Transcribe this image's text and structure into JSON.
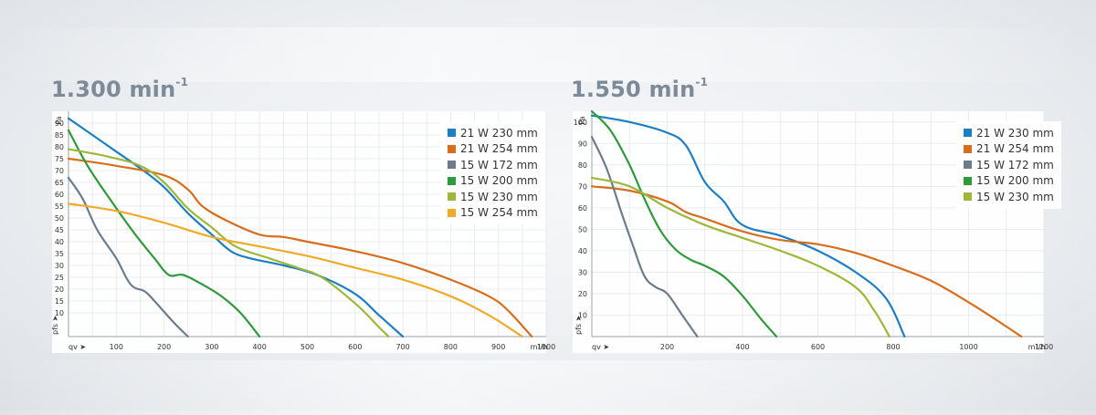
{
  "colors": {
    "21W230": "#1d7fc3",
    "21W254": "#d86e1d",
    "15W172": "#6b7d8c",
    "15W200": "#2f9a3c",
    "15W230": "#9cb83a",
    "15W254": "#eeaa28"
  },
  "chart_data": [
    {
      "type": "line",
      "title_base": "1.300 min",
      "title_sup": "-1",
      "ylabel_top": "Pa",
      "ylabel_side": "pfs ➤",
      "xlabel_left": "qv ➤",
      "xunit": "m³/h",
      "xlim": [
        0,
        1000
      ],
      "ylim": [
        0,
        95
      ],
      "xticks": [
        100,
        200,
        300,
        400,
        500,
        600,
        700,
        800,
        900,
        1000
      ],
      "yticks": [
        10,
        15,
        20,
        25,
        30,
        35,
        40,
        45,
        50,
        55,
        60,
        65,
        70,
        75,
        80,
        85,
        90
      ],
      "legend": [
        "21 W 230 mm",
        "21 W 254 mm",
        "15 W 172 mm",
        "15 W 200 mm",
        "15 W 230 mm",
        "15 W 254 mm"
      ],
      "series": [
        {
          "name": "21 W 230 mm",
          "color_key": "21W230",
          "points": [
            [
              0,
              92
            ],
            [
              50,
              85
            ],
            [
              100,
              78
            ],
            [
              150,
              71
            ],
            [
              200,
              63
            ],
            [
              250,
              52
            ],
            [
              300,
              43
            ],
            [
              340,
              36
            ],
            [
              380,
              33
            ],
            [
              450,
              30
            ],
            [
              520,
              26
            ],
            [
              600,
              18
            ],
            [
              650,
              9
            ],
            [
              700,
              0
            ]
          ]
        },
        {
          "name": "21 W 254 mm",
          "color_key": "21W254",
          "points": [
            [
              0,
              75
            ],
            [
              100,
              72
            ],
            [
              200,
              68
            ],
            [
              250,
              62
            ],
            [
              280,
              55
            ],
            [
              330,
              49
            ],
            [
              400,
              43
            ],
            [
              450,
              42
            ],
            [
              500,
              40
            ],
            [
              600,
              36
            ],
            [
              700,
              31
            ],
            [
              800,
              24
            ],
            [
              880,
              17
            ],
            [
              920,
              11
            ],
            [
              970,
              0
            ]
          ]
        },
        {
          "name": "15 W 172 mm",
          "color_key": "15W172",
          "points": [
            [
              0,
              67
            ],
            [
              30,
              58
            ],
            [
              60,
              45
            ],
            [
              100,
              33
            ],
            [
              130,
              22
            ],
            [
              160,
              19
            ],
            [
              180,
              15
            ],
            [
              220,
              6
            ],
            [
              250,
              0
            ]
          ]
        },
        {
          "name": "15 W 200 mm",
          "color_key": "15W200",
          "points": [
            [
              0,
              87
            ],
            [
              40,
              72
            ],
            [
              90,
              57
            ],
            [
              140,
              43
            ],
            [
              180,
              33
            ],
            [
              210,
              26
            ],
            [
              240,
              26
            ],
            [
              280,
              22
            ],
            [
              320,
              17
            ],
            [
              360,
              10
            ],
            [
              400,
              0
            ]
          ]
        },
        {
          "name": "15 W 230 mm",
          "color_key": "15W230",
          "points": [
            [
              0,
              79
            ],
            [
              80,
              76
            ],
            [
              150,
              72
            ],
            [
              200,
              65
            ],
            [
              250,
              54
            ],
            [
              300,
              46
            ],
            [
              350,
              38
            ],
            [
              420,
              33
            ],
            [
              480,
              29
            ],
            [
              530,
              25
            ],
            [
              600,
              14
            ],
            [
              650,
              4
            ],
            [
              670,
              0
            ]
          ]
        },
        {
          "name": "15 W 254 mm",
          "color_key": "15W254",
          "points": [
            [
              0,
              56
            ],
            [
              100,
              53
            ],
            [
              200,
              48
            ],
            [
              300,
              42
            ],
            [
              400,
              38
            ],
            [
              500,
              34
            ],
            [
              600,
              29
            ],
            [
              700,
              24
            ],
            [
              800,
              17
            ],
            [
              880,
              9
            ],
            [
              950,
              0
            ]
          ]
        }
      ]
    },
    {
      "type": "line",
      "title_base": "1.550 min",
      "title_sup": "-1",
      "ylabel_top": "Pa",
      "ylabel_side": "pfs ➤",
      "xlabel_left": "qv ➤",
      "xunit": "m³/h",
      "xlim": [
        0,
        1200
      ],
      "ylim": [
        0,
        105
      ],
      "xticks": [
        200,
        400,
        600,
        800,
        1000,
        1200
      ],
      "yticks": [
        10,
        20,
        30,
        40,
        50,
        60,
        70,
        80,
        90,
        100
      ],
      "legend": [
        "21 W 230 mm",
        "21 W 254 mm",
        "15 W 172 mm",
        "15 W 200 mm",
        "15 W 230 mm"
      ],
      "series": [
        {
          "name": "21 W 230 mm",
          "color_key": "21W230",
          "points": [
            [
              0,
              103
            ],
            [
              100,
              100
            ],
            [
              200,
              95
            ],
            [
              250,
              89
            ],
            [
              300,
              72
            ],
            [
              350,
              63
            ],
            [
              400,
              52
            ],
            [
              500,
              47
            ],
            [
              600,
              40
            ],
            [
              700,
              30
            ],
            [
              780,
              18
            ],
            [
              830,
              0
            ]
          ]
        },
        {
          "name": "21 W 254 mm",
          "color_key": "21W254",
          "points": [
            [
              0,
              70
            ],
            [
              100,
              68
            ],
            [
              200,
              63
            ],
            [
              250,
              58
            ],
            [
              300,
              55
            ],
            [
              400,
              49
            ],
            [
              500,
              45
            ],
            [
              600,
              43
            ],
            [
              700,
              39
            ],
            [
              800,
              33
            ],
            [
              900,
              26
            ],
            [
              1000,
              16
            ],
            [
              1080,
              7
            ],
            [
              1140,
              0
            ]
          ]
        },
        {
          "name": "15 W 172 mm",
          "color_key": "15W172",
          "points": [
            [
              0,
              93
            ],
            [
              40,
              78
            ],
            [
              80,
              57
            ],
            [
              110,
              42
            ],
            [
              140,
              28
            ],
            [
              170,
              23
            ],
            [
              200,
              20
            ],
            [
              240,
              10
            ],
            [
              280,
              0
            ]
          ]
        },
        {
          "name": "15 W 200 mm",
          "color_key": "15W200",
          "points": [
            [
              0,
              105
            ],
            [
              50,
              96
            ],
            [
              100,
              80
            ],
            [
              140,
              64
            ],
            [
              180,
              50
            ],
            [
              220,
              41
            ],
            [
              260,
              36
            ],
            [
              300,
              33
            ],
            [
              350,
              28
            ],
            [
              400,
              19
            ],
            [
              450,
              8
            ],
            [
              490,
              0
            ]
          ]
        },
        {
          "name": "15 W 230 mm",
          "color_key": "15W230",
          "points": [
            [
              0,
              74
            ],
            [
              100,
              70
            ],
            [
              200,
              60
            ],
            [
              300,
              52
            ],
            [
              400,
              46
            ],
            [
              500,
              40
            ],
            [
              600,
              33
            ],
            [
              700,
              23
            ],
            [
              750,
              12
            ],
            [
              790,
              0
            ]
          ]
        }
      ]
    }
  ]
}
